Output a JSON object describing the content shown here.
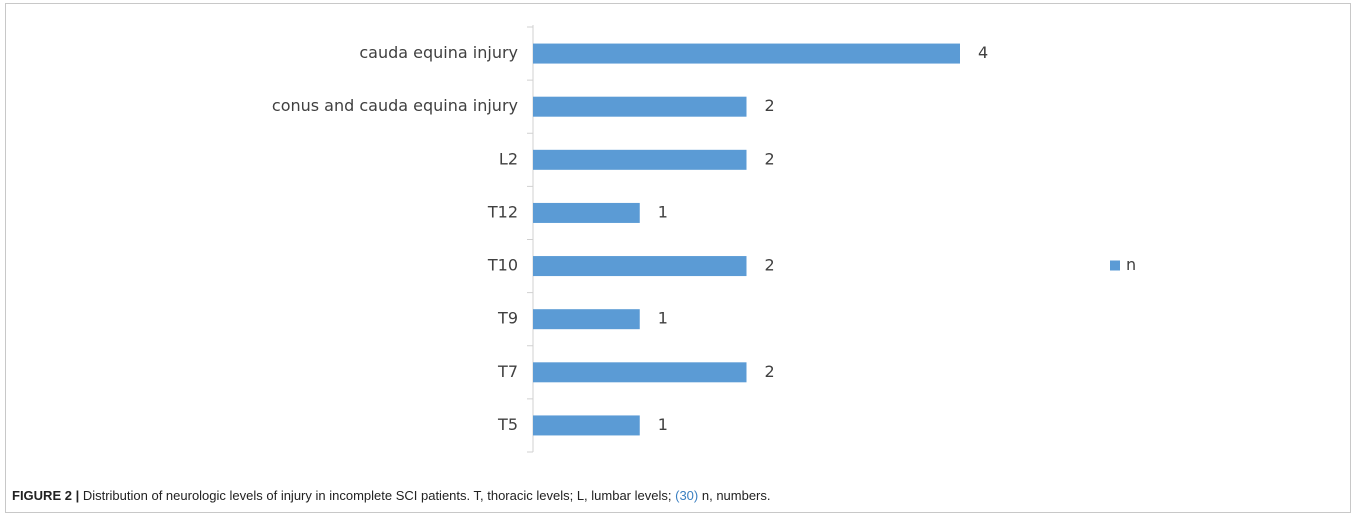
{
  "chart_data": {
    "type": "bar",
    "orientation": "horizontal",
    "categories": [
      "cauda equina injury",
      "conus and cauda equina injury",
      "L2",
      "T12",
      "T10",
      "T9",
      "T7",
      "T5"
    ],
    "series": [
      {
        "name": "n",
        "color": "#5b9bd5",
        "values": [
          4,
          2,
          2,
          1,
          2,
          1,
          2,
          1
        ]
      }
    ],
    "legend": "right"
  },
  "caption": {
    "label": "FIGURE 2 |",
    "text": "Distribution of neurologic levels of injury in incomplete SCI patients. T, thoracic levels; L, lumbar levels;",
    "reference": "(30)",
    "text_after": "n, numbers."
  }
}
